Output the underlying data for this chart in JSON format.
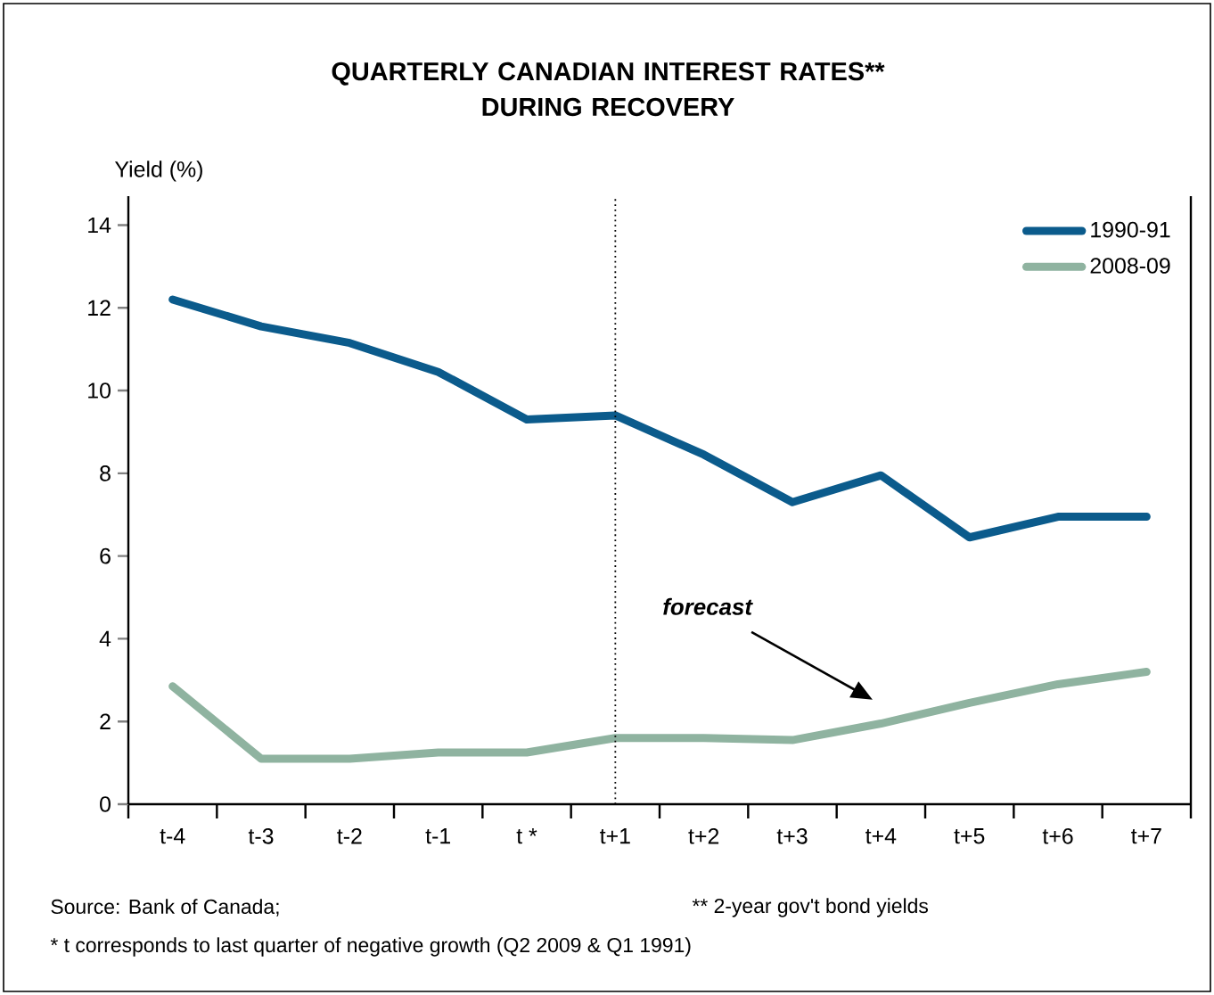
{
  "chart_data": {
    "type": "line",
    "title": "QUARTERLY CANADIAN INTEREST RATES**\nDURING RECOVERY",
    "ylabel": "Yield (%)",
    "categories": [
      "t-4",
      "t-3",
      "t-2",
      "t-1",
      "t *",
      "t+1",
      "t+2",
      "t+3",
      "t+4",
      "t+5",
      "t+6",
      "t+7"
    ],
    "series": [
      {
        "name": "1990-91",
        "color": "#0b5b8c",
        "values": [
          12.2,
          11.55,
          11.15,
          10.45,
          9.3,
          9.4,
          8.45,
          7.3,
          7.95,
          6.45,
          6.95,
          6.95
        ]
      },
      {
        "name": "2008-09",
        "color": "#8fb3a0",
        "values": [
          2.85,
          1.1,
          1.1,
          1.25,
          1.25,
          1.6,
          1.6,
          1.55,
          1.95,
          2.45,
          2.9,
          3.2
        ]
      }
    ],
    "ylim": [
      0,
      14.7
    ],
    "yticks": [
      0,
      2,
      4,
      6,
      8,
      10,
      12,
      14
    ],
    "grid": false,
    "legend": "top right",
    "marker": "none",
    "line_style": "solid",
    "ref_lines": [
      {
        "axis": "x",
        "value": "t+1",
        "color": "#000000",
        "line_style": "dotted"
      }
    ],
    "annotations": [
      "Source: Bank of Canada;",
      "** 2-year gov't bond yields",
      "* t corresponds to last quarter of negative growth (Q2 2009 & Q1 1991)",
      "forecast"
    ]
  }
}
